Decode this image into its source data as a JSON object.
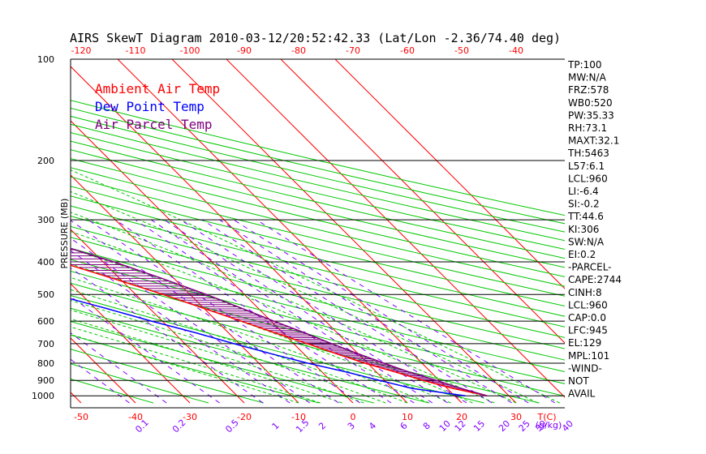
{
  "chart_data": {
    "type": "line",
    "title": "AIRS SkewT Diagram 2010-03-12/20:52:42.33 (Lat/Lon -2.36/74.40 deg)",
    "ylabel": "PRESSURE (MB)",
    "xlabel_bottom": "T(C)",
    "mixing_ratio_unit": "(g/kg)",
    "y_scale": "log-pressure",
    "ylim": [
      1050,
      100
    ],
    "y_ticks": [
      100,
      200,
      300,
      400,
      500,
      600,
      700,
      800,
      900,
      1000
    ],
    "x_ticks_bottom": [
      -50,
      -40,
      -30,
      -20,
      -10,
      0,
      10,
      20,
      30
    ],
    "x_ticks_top": [
      -120,
      -110,
      -100,
      -90,
      -80,
      -70,
      -60,
      -50,
      -40
    ],
    "mixing_ratio_labels": [
      "0.1",
      "0.2",
      "0.5",
      "1",
      "1.5",
      "2",
      "3",
      "4",
      "6",
      "8",
      "10",
      "12",
      "15",
      "20",
      "25",
      "30",
      "40"
    ],
    "legend": [
      {
        "label": "Ambient Air Temp",
        "color": "#ff0000"
      },
      {
        "label": "Dew Point Temp",
        "color": "#0000ff"
      },
      {
        "label": "Air Parcel Temp",
        "color": "#800080"
      }
    ],
    "series": [
      {
        "name": "Ambient Air Temp",
        "color": "#ff0000",
        "points": [
          [
            100,
            -83
          ],
          [
            120,
            -80
          ],
          [
            150,
            -74
          ],
          [
            170,
            -69
          ],
          [
            200,
            -62
          ],
          [
            250,
            -52
          ],
          [
            300,
            -43
          ],
          [
            350,
            -35
          ],
          [
            400,
            -28
          ],
          [
            450,
            -21
          ],
          [
            500,
            -15
          ],
          [
            550,
            -10
          ],
          [
            600,
            -5.5
          ],
          [
            650,
            -1.5
          ],
          [
            700,
            2.5
          ],
          [
            750,
            6
          ],
          [
            800,
            9.5
          ],
          [
            850,
            13.5
          ],
          [
            900,
            17
          ],
          [
            950,
            21
          ],
          [
            1000,
            26
          ]
        ]
      },
      {
        "name": "Dew Point Temp",
        "color": "#0000ff",
        "points": [
          [
            100,
            -86
          ],
          [
            150,
            -89
          ],
          [
            200,
            -93
          ],
          [
            250,
            -88
          ],
          [
            300,
            -83
          ],
          [
            350,
            -65
          ],
          [
            400,
            -54
          ],
          [
            450,
            -44
          ],
          [
            500,
            -35
          ],
          [
            550,
            -28
          ],
          [
            600,
            -22
          ],
          [
            650,
            -16
          ],
          [
            700,
            -11
          ],
          [
            750,
            -6
          ],
          [
            800,
            -1
          ],
          [
            850,
            4.5
          ],
          [
            900,
            9
          ],
          [
            950,
            13.5
          ],
          [
            1000,
            22
          ]
        ]
      },
      {
        "name": "Air Parcel Temp",
        "color": "#800080",
        "points": [
          [
            150,
            -78
          ],
          [
            175,
            -70
          ],
          [
            200,
            -58
          ],
          [
            250,
            -44
          ],
          [
            300,
            -34
          ],
          [
            350,
            -26
          ],
          [
            400,
            -18
          ],
          [
            450,
            -12
          ],
          [
            500,
            -7
          ],
          [
            550,
            -3
          ],
          [
            600,
            0.5
          ],
          [
            650,
            4
          ],
          [
            700,
            7
          ],
          [
            750,
            10
          ],
          [
            800,
            13
          ],
          [
            850,
            16
          ],
          [
            900,
            19.5
          ],
          [
            950,
            22.5
          ],
          [
            1000,
            26
          ]
        ]
      }
    ]
  },
  "indices": [
    "TP:100",
    "MW:N/A",
    "FRZ:578",
    "WB0:520",
    "PW:35.33",
    "RH:73.1",
    "MAXT:32.1",
    "TH:5463",
    "L57:6.1",
    "LCL:960",
    "LI:-6.4",
    "SI:-0.2",
    "TT:44.6",
    "KI:306",
    "SW:N/A",
    "EI:0.2",
    "-PARCEL-",
    "CAPE:2744",
    "CINH:8",
    "LCL:960",
    "CAP:0.0",
    "LFC:945",
    "EL:129",
    "MPL:101",
    "-WIND-",
    "NOT",
    "AVAIL"
  ],
  "colors": {
    "isotherm": "#ff0000",
    "dry_adiabat": "#00c800",
    "moist_adiabat": "#00c800",
    "mixing_ratio": "#8000ff",
    "isobar": "#000000"
  }
}
